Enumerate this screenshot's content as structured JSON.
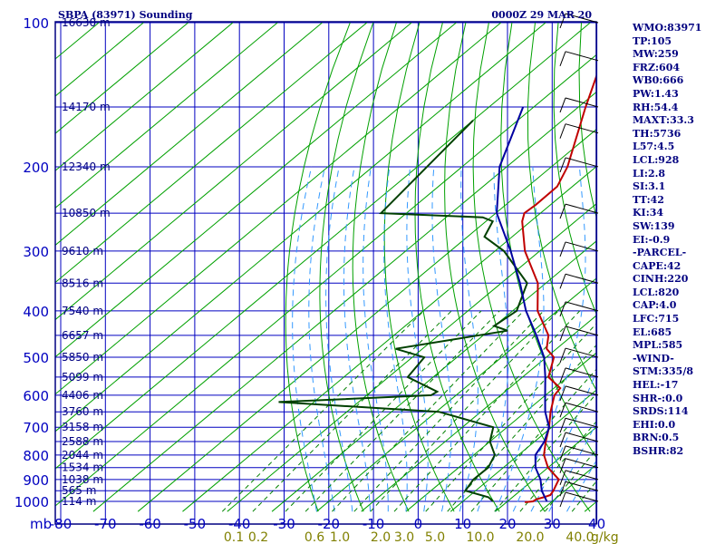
{
  "title": "SBPA (83971) Sounding",
  "valid_time": "0000Z 29 MAR 20",
  "indices": [
    "WMO:83971",
    "TP:105",
    "MW:259",
    "FRZ:604",
    "WB0:666",
    "PW:1.43",
    "RH:54.4",
    "MAXT:33.3",
    "TH:5736",
    "L57:4.5",
    "LCL:928",
    "LI:2.8",
    "SI:3.1",
    "TT:42",
    "KI:34",
    "SW:139",
    "EI:-0.9",
    "-PARCEL-",
    "CAPE:42",
    "CINH:220",
    "LCL:820",
    "CAP:4.0",
    "LFC:715",
    "EL:685",
    "MPL:585",
    "-WIND-",
    "STM:335/8",
    "HEL:-17",
    "SHR-:0.0",
    "SRDS:114",
    "EHI:0.0",
    "BRN:0.5",
    "BSHR:82"
  ],
  "colors": {
    "frame": "#000080",
    "grid": "#0000c0",
    "dry_adiabat": "#00a000",
    "mixing_ratio": "#008000",
    "moist_adiabat": "#3399ff",
    "temperature": "#c00000",
    "dewpoint": "#004000",
    "parcel": "#0000a0",
    "labels": "#808000"
  },
  "chart_data": {
    "type": "line",
    "chart_kind": "skew-T log-P sounding",
    "y_axis": {
      "quantity": "pressure",
      "unit_label": "mb",
      "scale": "log",
      "range": [
        1050,
        100
      ],
      "ticks": [
        100,
        200,
        300,
        400,
        500,
        600,
        700,
        800,
        900,
        1000
      ]
    },
    "x_axis": {
      "quantity": "temperature",
      "range": [
        -80,
        40
      ],
      "ticks": [
        -80,
        -70,
        -60,
        -50,
        -40,
        -30,
        -20,
        -10,
        0,
        10,
        20,
        30,
        40
      ]
    },
    "isobar_lines_mb": [
      100,
      150,
      200,
      250,
      300,
      350,
      400,
      450,
      500,
      550,
      600,
      650,
      700,
      750,
      800,
      850,
      900,
      950,
      1000
    ],
    "height_labels": [
      {
        "p": 100,
        "label": "16630 m"
      },
      {
        "p": 150,
        "label": "14170 m"
      },
      {
        "p": 200,
        "label": "12340 m"
      },
      {
        "p": 250,
        "label": "10850 m"
      },
      {
        "p": 300,
        "label": "9610 m"
      },
      {
        "p": 350,
        "label": "8516 m"
      },
      {
        "p": 400,
        "label": "7540 m"
      },
      {
        "p": 450,
        "label": "6657 m"
      },
      {
        "p": 500,
        "label": "5850 m"
      },
      {
        "p": 550,
        "label": "5099 m"
      },
      {
        "p": 600,
        "label": "4406 m"
      },
      {
        "p": 650,
        "label": "3760 m"
      },
      {
        "p": 700,
        "label": "3158 m"
      },
      {
        "p": 750,
        "label": "2588 m"
      },
      {
        "p": 800,
        "label": "2044 m"
      },
      {
        "p": 850,
        "label": "1534 m"
      },
      {
        "p": 900,
        "label": "1038 m"
      },
      {
        "p": 950,
        "label": "565 m"
      },
      {
        "p": 1000,
        "label": "114 m"
      }
    ],
    "mixing_ratio_labels": [
      "0.1",
      "0.2",
      "0.6",
      "1.0",
      "2.0",
      "3.0",
      "5.0",
      "10.0",
      "20.0",
      "40.0"
    ],
    "mixing_ratio_unit": "g/kg",
    "series": [
      {
        "values": [
          [
            100,
            -77.6
          ],
          [
            120,
            -77.2
          ],
          [
            150,
            -68.4
          ],
          [
            200,
            -56.4
          ],
          [
            220,
            -53.4
          ],
          [
            240,
            -53.3
          ],
          [
            250,
            -53.6
          ],
          [
            260,
            -51.9
          ],
          [
            300,
            -43.3
          ],
          [
            350,
            -31.8
          ],
          [
            400,
            -24.4
          ],
          [
            450,
            -15.4
          ],
          [
            480,
            -12.2
          ],
          [
            500,
            -8.3
          ],
          [
            550,
            -4.2
          ],
          [
            580,
            1.4
          ],
          [
            600,
            2.0
          ],
          [
            650,
            5.6
          ],
          [
            700,
            9.4
          ],
          [
            750,
            12.5
          ],
          [
            800,
            15.7
          ],
          [
            850,
            20.0
          ],
          [
            900,
            25.6
          ],
          [
            950,
            27.4
          ],
          [
            970,
            27.9
          ],
          [
            980,
            27.0
          ],
          [
            990,
            25.9
          ],
          [
            1000,
            25.7
          ],
          [
            1004,
            24.1
          ]
        ]
      },
      {
        "values": [
          [
            160,
            -90.0
          ],
          [
            250,
            -85.7
          ],
          [
            255,
            -61.8
          ],
          [
            260,
            -58.5
          ],
          [
            280,
            -56.2
          ],
          [
            300,
            -48.0
          ],
          [
            350,
            -34.2
          ],
          [
            400,
            -29.1
          ],
          [
            430,
            -30.1
          ],
          [
            440,
            -25.8
          ],
          [
            480,
            -46.0
          ],
          [
            500,
            -37.3
          ],
          [
            550,
            -35.7
          ],
          [
            590,
            -25.2
          ],
          [
            600,
            -25.6
          ],
          [
            620,
            -57.9
          ],
          [
            650,
            -19.4
          ],
          [
            700,
            -3.1
          ],
          [
            750,
            0.0
          ],
          [
            800,
            4.7
          ],
          [
            850,
            6.6
          ],
          [
            900,
            6.5
          ],
          [
            950,
            7.7
          ],
          [
            980,
            14.6
          ],
          [
            1000,
            16.8
          ]
        ]
      },
      {
        "values": [
          [
            150,
            -82.4
          ],
          [
            200,
            -71.6
          ],
          [
            250,
            -59.8
          ],
          [
            300,
            -46.5
          ],
          [
            350,
            -35.8
          ],
          [
            400,
            -27.0
          ],
          [
            450,
            -18.1
          ],
          [
            500,
            -10.5
          ],
          [
            550,
            -4.9
          ],
          [
            600,
            -0.1
          ],
          [
            650,
            4.4
          ],
          [
            700,
            9.4
          ],
          [
            750,
            12.2
          ],
          [
            800,
            13.8
          ],
          [
            850,
            17.2
          ],
          [
            900,
            21.5
          ],
          [
            950,
            24.8
          ],
          [
            1000,
            28.8
          ]
        ]
      }
    ]
  }
}
